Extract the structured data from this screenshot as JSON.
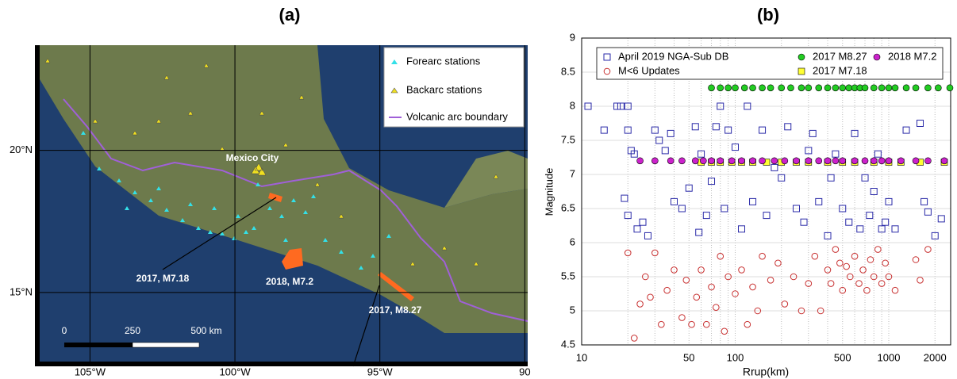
{
  "panel_labels": [
    "(a)",
    "(b)"
  ],
  "map": {
    "xlim": [
      -106.9,
      -89.9
    ],
    "ylim": [
      12.4,
      23.7
    ],
    "xticks": [
      {
        "value": -105,
        "label": "105°W"
      },
      {
        "value": -100,
        "label": "100°W"
      },
      {
        "value": -95,
        "label": "95°W"
      },
      {
        "value": -90,
        "label": "90"
      }
    ],
    "yticks": [
      {
        "value": 20,
        "label": "20°N"
      },
      {
        "value": 15,
        "label": "15°N"
      }
    ],
    "legend": [
      "Forearc stations",
      "Backarc stations",
      "Volcanic arc boundary"
    ],
    "annotations": [
      "Mexico City",
      "2017, M7.18",
      "2018, M7.2",
      "2017, M8.27"
    ],
    "scale_bar": [
      "0",
      "250",
      "500 km"
    ]
  },
  "chart_data": {
    "type": "scatter",
    "x_label": "Rrup(km)",
    "y_label": "Magnitude",
    "log_x": true,
    "xlim": [
      10,
      2530
    ],
    "ylim": [
      4.5,
      9
    ],
    "xticks": [
      10,
      50,
      100,
      500,
      1000,
      2000
    ],
    "x_minor_grid": [
      20,
      30,
      40,
      60,
      70,
      80,
      90,
      200,
      300,
      400,
      600,
      700,
      800,
      900
    ],
    "yticks": [
      4.5,
      5,
      5.5,
      6,
      6.5,
      7,
      7.5,
      8,
      8.5,
      9
    ],
    "grid": true,
    "series": [
      {
        "name": "April 2019 NGA-Sub DB",
        "color": "#2a2aa8",
        "marker": "square",
        "filled": false,
        "x": [
          11,
          14,
          17,
          18,
          20,
          20,
          21,
          22,
          19,
          20,
          23,
          25,
          27,
          30,
          32,
          35,
          38,
          40,
          45,
          50,
          55,
          58,
          60,
          65,
          70,
          75,
          80,
          85,
          90,
          100,
          110,
          120,
          130,
          150,
          160,
          180,
          200,
          220,
          250,
          280,
          300,
          320,
          350,
          400,
          420,
          450,
          500,
          550,
          600,
          650,
          700,
          750,
          800,
          850,
          900,
          950,
          1000,
          1100,
          1300,
          1600,
          1800,
          2000,
          2200,
          1700
        ],
        "values": [
          8,
          7.65,
          8,
          8,
          8,
          7.65,
          7.35,
          7.3,
          6.65,
          6.4,
          6.2,
          6.3,
          6.1,
          7.65,
          7.5,
          7.35,
          7.6,
          6.6,
          6.5,
          6.8,
          7.7,
          6.15,
          7.3,
          6.4,
          6.9,
          7.7,
          8,
          6.5,
          7.65,
          7.4,
          6.2,
          8,
          6.6,
          7.65,
          6.4,
          7.1,
          6.95,
          7.7,
          6.5,
          6.3,
          7.35,
          7.6,
          6.6,
          6.1,
          6.95,
          7.3,
          6.5,
          6.3,
          7.6,
          6.2,
          6.95,
          6.4,
          6.75,
          7.3,
          6.2,
          6.3,
          6.6,
          6.2,
          7.65,
          7.75,
          6.45,
          6.1,
          6.35,
          6.6
        ]
      },
      {
        "name": "M<6 Updates",
        "color": "#c83232",
        "marker": "circle",
        "filled": false,
        "x": [
          20,
          22,
          24,
          26,
          28,
          30,
          33,
          36,
          40,
          45,
          48,
          52,
          56,
          60,
          65,
          70,
          75,
          80,
          85,
          90,
          100,
          110,
          120,
          130,
          140,
          150,
          170,
          190,
          210,
          240,
          270,
          300,
          330,
          360,
          400,
          420,
          450,
          480,
          500,
          530,
          560,
          600,
          640,
          680,
          720,
          760,
          800,
          850,
          900,
          950,
          1000,
          1100,
          1500,
          1600,
          1800
        ],
        "values": [
          5.85,
          4.6,
          5.1,
          5.5,
          5.2,
          5.85,
          4.8,
          5.3,
          5.6,
          4.9,
          5.45,
          4.8,
          5.2,
          5.6,
          4.8,
          5.35,
          5.05,
          5.8,
          4.7,
          5.5,
          5.25,
          5.6,
          4.8,
          5.35,
          5,
          5.8,
          5.45,
          5.7,
          5.1,
          5.5,
          5,
          5.4,
          5.8,
          5,
          5.6,
          5.4,
          5.9,
          5.7,
          5.3,
          5.65,
          5.5,
          5.8,
          5.4,
          5.6,
          5.3,
          5.75,
          5.5,
          5.9,
          5.4,
          5.7,
          5.5,
          5.3,
          5.75,
          5.45,
          5.9
        ]
      },
      {
        "name": "2017 M8.27",
        "color": "#22cc22",
        "marker": "circle",
        "filled": true,
        "x": [
          70,
          80,
          90,
          100,
          115,
          130,
          150,
          170,
          200,
          230,
          270,
          300,
          350,
          400,
          450,
          500,
          550,
          600,
          650,
          700,
          800,
          900,
          1000,
          1100,
          1300,
          1500,
          1800,
          2100,
          2500
        ],
        "values": [
          8.27,
          8.27,
          8.27,
          8.27,
          8.27,
          8.27,
          8.27,
          8.27,
          8.27,
          8.27,
          8.27,
          8.27,
          8.27,
          8.27,
          8.27,
          8.27,
          8.27,
          8.27,
          8.27,
          8.27,
          8.27,
          8.27,
          8.27,
          8.27,
          8.27,
          8.27,
          8.27,
          8.27,
          8.27
        ]
      },
      {
        "name": "2017 M7.18",
        "color": "#ffff33",
        "marker": "square",
        "filled": true,
        "x": [
          60,
          70,
          80,
          95,
          110,
          130,
          160,
          200,
          250,
          300,
          400,
          500,
          600,
          800,
          1000,
          1200,
          1600,
          2300
        ],
        "values": [
          7.18,
          7.18,
          7.18,
          7.18,
          7.18,
          7.18,
          7.18,
          7.18,
          7.18,
          7.18,
          7.18,
          7.18,
          7.18,
          7.18,
          7.18,
          7.18,
          7.18,
          7.18
        ]
      },
      {
        "name": "2018 M7.2",
        "color": "#cc22cc",
        "marker": "circle",
        "filled": true,
        "x": [
          24,
          30,
          38,
          45,
          55,
          62,
          70,
          80,
          95,
          110,
          130,
          150,
          180,
          210,
          250,
          300,
          350,
          400,
          450,
          500,
          600,
          700,
          800,
          900,
          1000,
          1200,
          1500,
          1800,
          2300
        ],
        "values": [
          7.2,
          7.2,
          7.2,
          7.2,
          7.2,
          7.2,
          7.2,
          7.2,
          7.2,
          7.2,
          7.2,
          7.2,
          7.2,
          7.2,
          7.2,
          7.2,
          7.2,
          7.2,
          7.2,
          7.2,
          7.2,
          7.2,
          7.2,
          7.2,
          7.2,
          7.2,
          7.2,
          7.2,
          7.2
        ]
      }
    ]
  }
}
